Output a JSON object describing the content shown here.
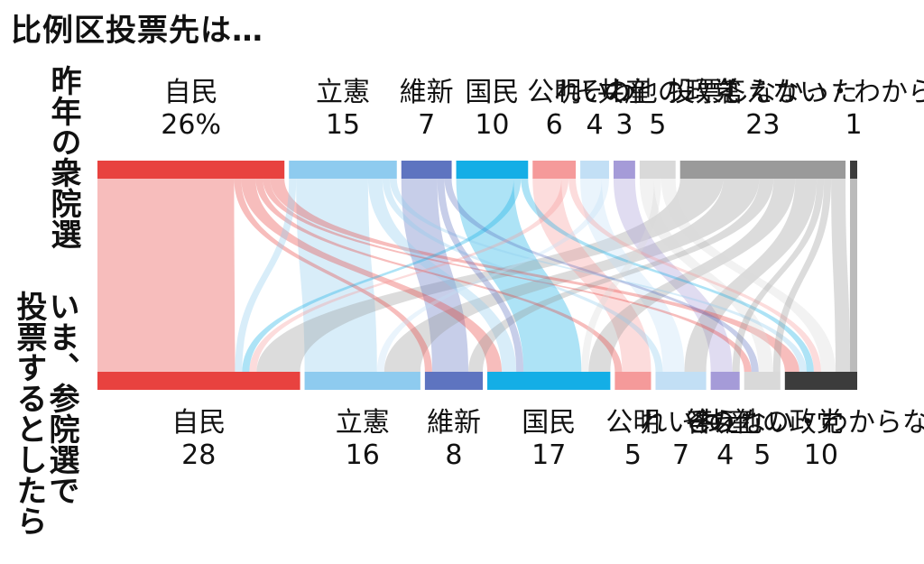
{
  "title": "比例区投票先は…",
  "row_labels": {
    "top": "昨年の衆院選",
    "bottom": [
      "いま、参院選で",
      "投票するとしたら"
    ]
  },
  "chart_data": {
    "type": "sankey",
    "title": "比例区投票先は…",
    "unit": "%",
    "source_row": "昨年の衆院選",
    "target_row": "いま、参院選で投票するとしたら",
    "sources": [
      {
        "label": "自民",
        "value": 26,
        "value_text": "26%",
        "color": "#e8423f"
      },
      {
        "label": "立憲",
        "value": 15,
        "value_text": "15",
        "color": "#8ecbef"
      },
      {
        "label": "維新",
        "value": 7,
        "value_text": "7",
        "color": "#5e74c0"
      },
      {
        "label": "国民",
        "value": 10,
        "value_text": "10",
        "color": "#14aee6"
      },
      {
        "label": "公明",
        "value": 6,
        "value_text": "6",
        "color": "#f59a9a"
      },
      {
        "label": "れいわ",
        "value": 4,
        "value_text": "4",
        "color": "#c2dff5"
      },
      {
        "label": "共産",
        "value": 3,
        "value_text": "3",
        "color": "#a59bd8"
      },
      {
        "label": "その他の政党",
        "text": "その他の政党",
        "value": 5,
        "value_text": "5",
        "color": "#d9d9d9"
      },
      {
        "label": "投票しなかった",
        "value": 23,
        "value_text": "23",
        "color": "#9a9a9a"
      },
      {
        "label": "答えない・わからない",
        "value": 1,
        "value_text": "1",
        "color": "#3c3c3c"
      }
    ],
    "targets": [
      {
        "label": "自民",
        "value": 28,
        "value_text": "28",
        "color": "#e8423f"
      },
      {
        "label": "立憲",
        "value": 16,
        "value_text": "16",
        "color": "#8ecbef"
      },
      {
        "label": "維新",
        "value": 8,
        "value_text": "8",
        "color": "#5e74c0"
      },
      {
        "label": "国民",
        "value": 17,
        "value_text": "17",
        "color": "#14aee6"
      },
      {
        "label": "公明",
        "value": 5,
        "value_text": "5",
        "color": "#f59a9a"
      },
      {
        "label": "れいわ",
        "value": 7,
        "value_text": "7",
        "color": "#c2dff5"
      },
      {
        "label": "共産",
        "value": 4,
        "value_text": "4",
        "color": "#a59bd8"
      },
      {
        "label": "その他の政党",
        "text": "その他の政党",
        "value": 5,
        "value_text": "5",
        "color": "#d9d9d9"
      },
      {
        "label": "答えない・わからない",
        "value": 10,
        "value_text": "10",
        "color": "#3c3c3c"
      }
    ],
    "flows": [
      {
        "from": "自民",
        "to": "自民",
        "value": 19
      },
      {
        "from": "自民",
        "to": "維新",
        "value": 1
      },
      {
        "from": "自民",
        "to": "国民",
        "value": 2
      },
      {
        "from": "自民",
        "to": "公明",
        "value": 1
      },
      {
        "from": "自民",
        "to": "その他の政党",
        "value": 1
      },
      {
        "from": "自民",
        "to": "答えない・わからない",
        "value": 2
      },
      {
        "from": "立憲",
        "to": "自民",
        "value": 1
      },
      {
        "from": "立憲",
        "to": "立憲",
        "value": 10
      },
      {
        "from": "立憲",
        "to": "国民",
        "value": 2
      },
      {
        "from": "立憲",
        "to": "れいわ",
        "value": 1
      },
      {
        "from": "立憲",
        "to": "答えない・わからない",
        "value": 1
      },
      {
        "from": "維新",
        "to": "維新",
        "value": 5
      },
      {
        "from": "維新",
        "to": "国民",
        "value": 1
      },
      {
        "from": "維新",
        "to": "その他の政党",
        "value": 1
      },
      {
        "from": "国民",
        "to": "国民",
        "value": 8
      },
      {
        "from": "国民",
        "to": "自民",
        "value": 1
      },
      {
        "from": "国民",
        "to": "答えない・わからない",
        "value": 1
      },
      {
        "from": "公明",
        "to": "公明",
        "value": 4
      },
      {
        "from": "公明",
        "to": "自民",
        "value": 1
      },
      {
        "from": "公明",
        "to": "答えない・わからない",
        "value": 1
      },
      {
        "from": "れいわ",
        "to": "れいわ",
        "value": 3
      },
      {
        "from": "れいわ",
        "to": "立憲",
        "value": 1
      },
      {
        "from": "共産",
        "to": "共産",
        "value": 3
      },
      {
        "from": "その他の政党",
        "to": "その他の政党",
        "value": 2
      },
      {
        "from": "その他の政党",
        "to": "国民",
        "value": 1
      },
      {
        "from": "その他の政党",
        "to": "答えない・わからない",
        "value": 2
      },
      {
        "from": "投票しなかった",
        "to": "自民",
        "value": 6
      },
      {
        "from": "投票しなかった",
        "to": "立憲",
        "value": 5
      },
      {
        "from": "投票しなかった",
        "to": "維新",
        "value": 2
      },
      {
        "from": "投票しなかった",
        "to": "国民",
        "value": 3
      },
      {
        "from": "投票しなかった",
        "to": "れいわ",
        "value": 3
      },
      {
        "from": "投票しなかった",
        "to": "共産",
        "value": 1
      },
      {
        "from": "投票しなかった",
        "to": "その他の政党",
        "value": 1
      },
      {
        "from": "投票しなかった",
        "to": "答えない・わからない",
        "value": 2
      },
      {
        "from": "答えない・わからない",
        "to": "答えない・わからない",
        "value": 1
      }
    ]
  }
}
